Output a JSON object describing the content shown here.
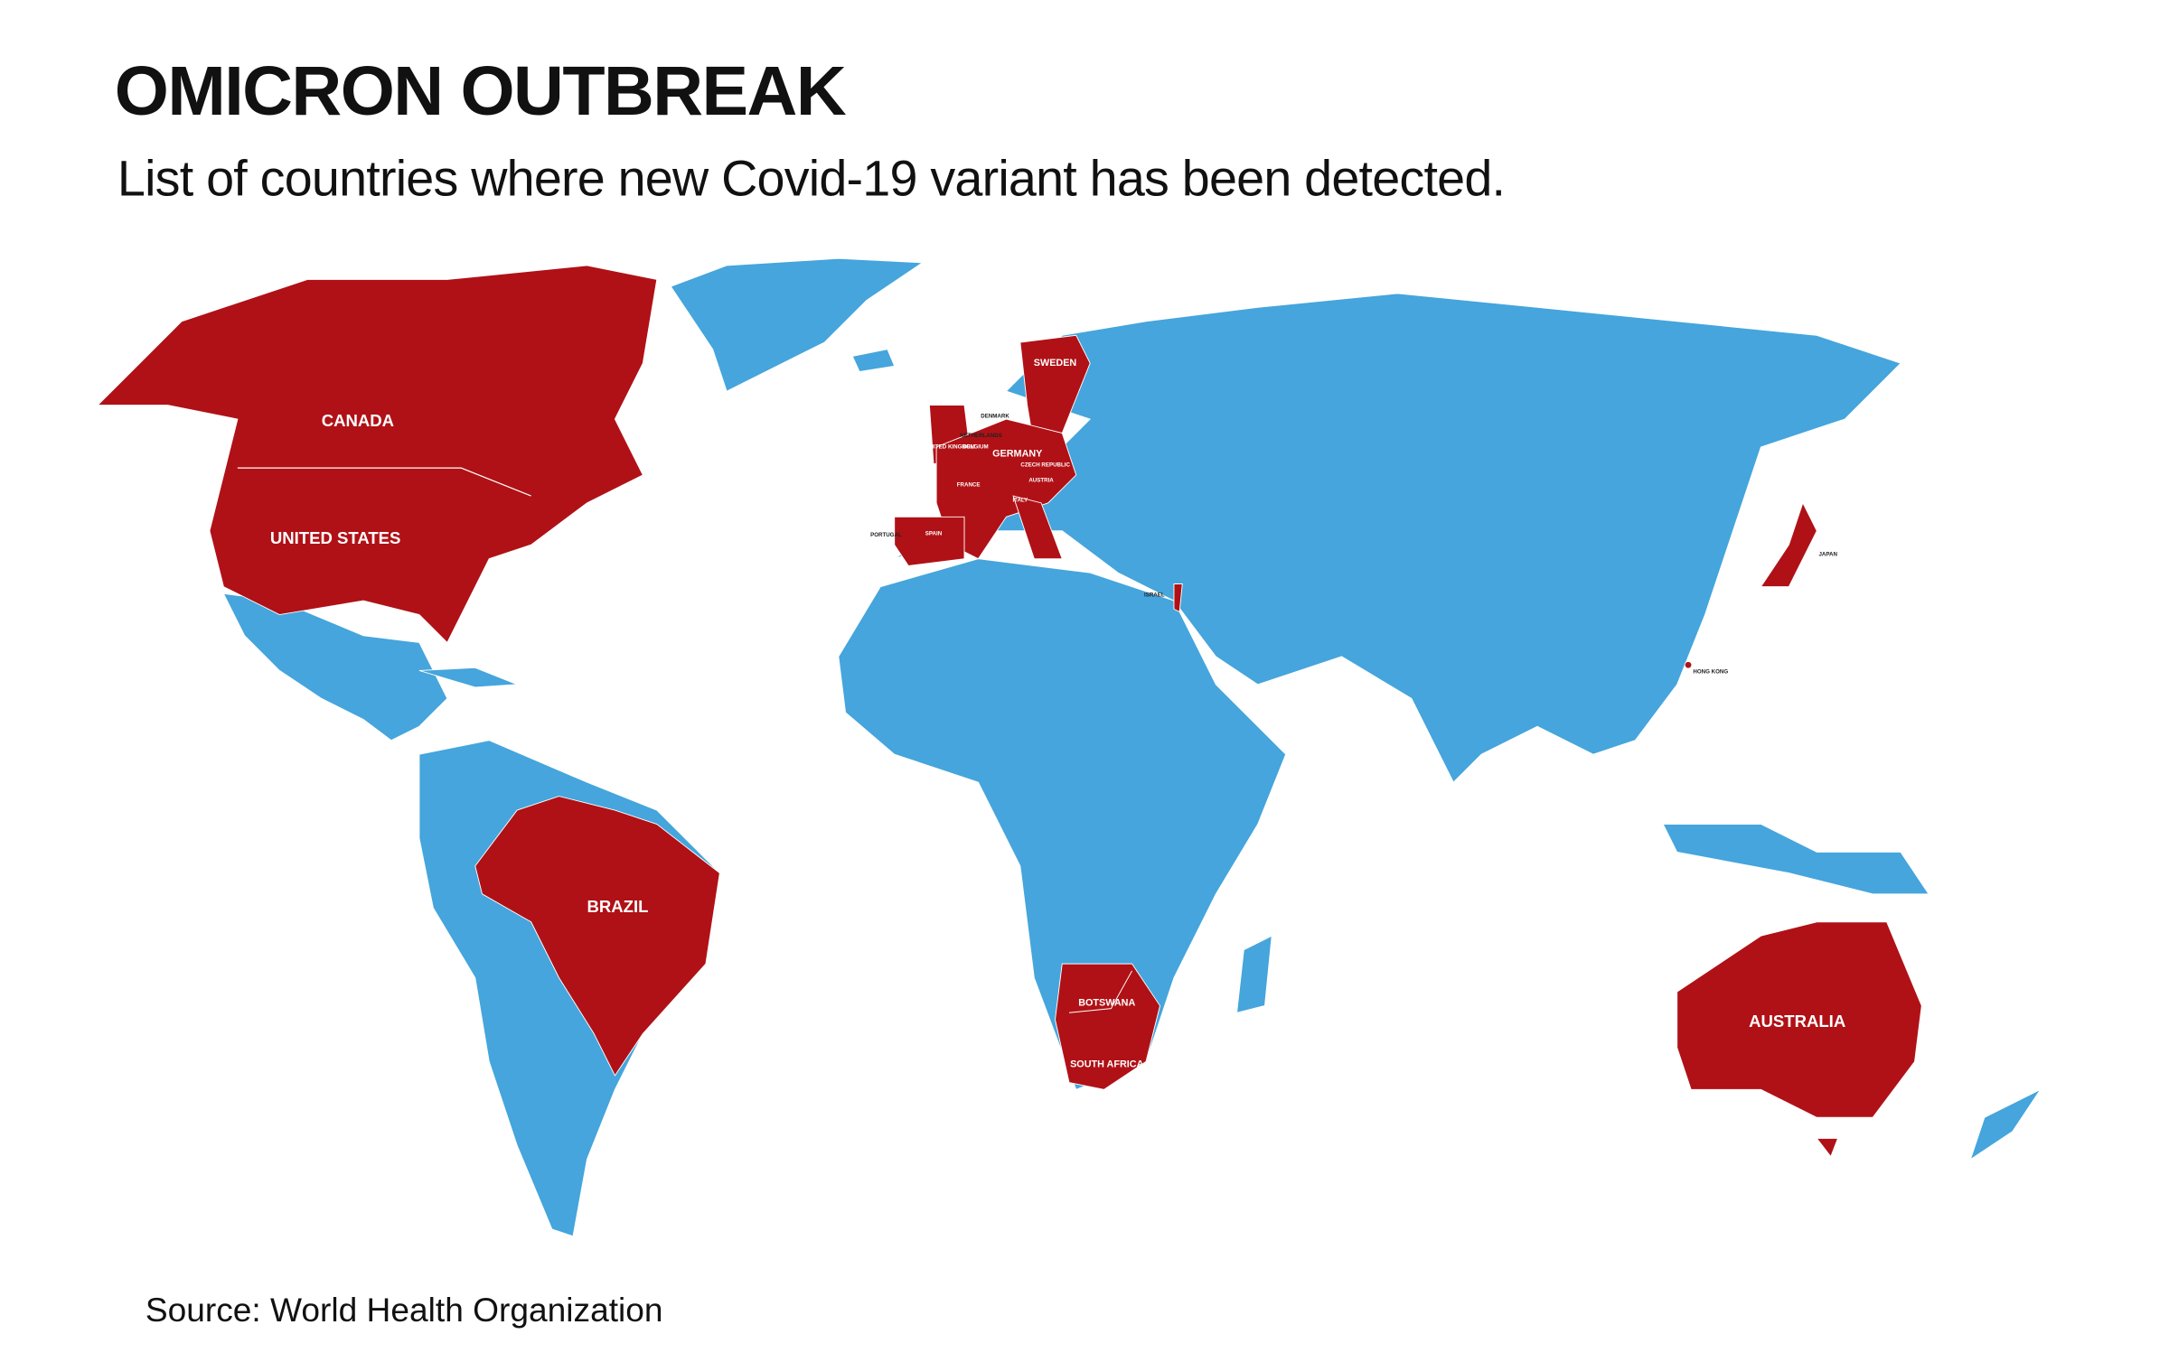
{
  "header": {
    "title": "OMICRON OUTBREAK",
    "subtitle": "List of countries where new Covid-19 variant has been detected."
  },
  "map": {
    "labels": [
      "CANADA",
      "UNITED STATES",
      "BRAZIL",
      "AUSTRALIA",
      "BOTSWANA",
      "SOUTH AFRICA",
      "SWEDEN",
      "DENMARK",
      "NETHERLANDS",
      "BELGIUM",
      "UNITED KINGDOM",
      "GERMANY",
      "CZECH REPUBLIC",
      "AUSTRIA",
      "FRANCE",
      "ITALY",
      "PORTUGAL",
      "SPAIN",
      "ISRAEL",
      "JAPAN",
      "HONG KONG"
    ]
  },
  "footer": {
    "source": "Source: World Health Organization"
  }
}
